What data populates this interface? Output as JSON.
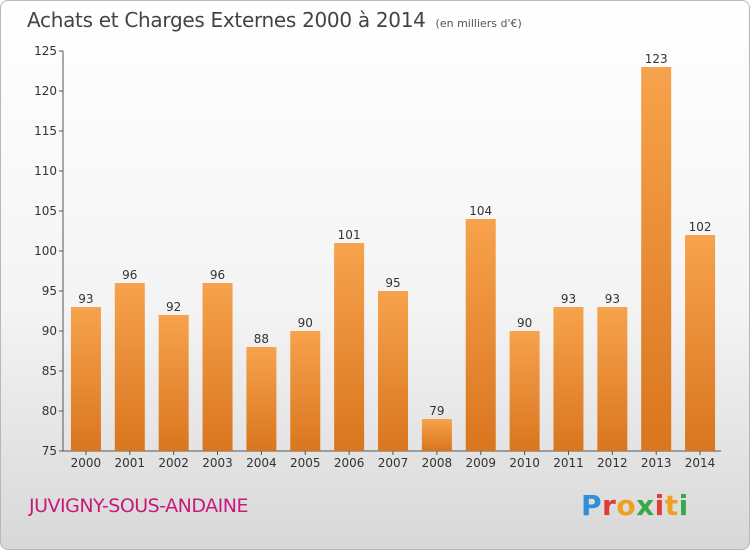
{
  "header": {
    "title": "Achats et Charges Externes 2000 à 2014",
    "unit": "(en milliers d'€)"
  },
  "footer": {
    "city": "JUVIGNY-SOUS-ANDAINE",
    "logo": "Proxiti"
  },
  "colors": {
    "bar_light": "#f7a24c",
    "bar_dark": "#d9761f",
    "city_text": "#c8197a"
  },
  "chart_data": {
    "type": "bar",
    "title": "Achats et Charges Externes 2000 à 2014",
    "subtitle": "(en milliers d'€)",
    "categories": [
      "2000",
      "2001",
      "2002",
      "2003",
      "2004",
      "2005",
      "2006",
      "2007",
      "2008",
      "2009",
      "2010",
      "2011",
      "2012",
      "2013",
      "2014"
    ],
    "values": [
      93,
      96,
      92,
      96,
      88,
      90,
      101,
      95,
      79,
      104,
      90,
      93,
      93,
      123,
      102
    ],
    "ylim": [
      75,
      125
    ],
    "yticks": [
      75,
      80,
      85,
      90,
      95,
      100,
      105,
      110,
      115,
      120,
      125
    ],
    "grid": false,
    "legend": "none"
  }
}
